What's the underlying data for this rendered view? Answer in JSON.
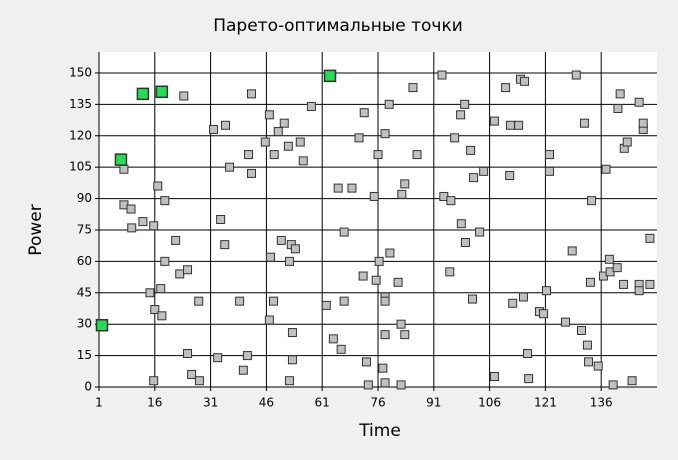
{
  "chart_data": {
    "type": "scatter",
    "title": "Парето-оптимальные точки",
    "x_label": "Time",
    "y_label": "Power",
    "xlim": [
      1,
      151
    ],
    "ylim": [
      0,
      160
    ],
    "xticks": [
      1,
      16,
      31,
      46,
      61,
      76,
      91,
      106,
      121,
      136
    ],
    "yticks": [
      0,
      15,
      30,
      45,
      60,
      75,
      90,
      105,
      120,
      135,
      150
    ],
    "grid": true,
    "series": [
      {
        "color": "#c0c0c0",
        "marker_size": 8,
        "x": [
          7.7,
          7.7,
          9.6,
          9.8,
          12.8,
          14.7,
          15.7,
          16,
          16.8,
          17.6,
          17.9,
          18.7,
          18.7,
          15.7,
          21.6,
          22.7,
          24.8,
          23.8,
          24.8,
          25.9,
          28,
          27.8,
          31.8,
          33.7,
          32.9,
          35,
          34.8,
          36.1,
          38.8,
          39.8,
          40.9,
          41.2,
          42,
          42,
          45.7,
          46.8,
          47.1,
          47.9,
          46.8,
          48.1,
          49.2,
          50,
          50.8,
          51.9,
          52.2,
          52.7,
          53.8,
          52.2,
          53,
          53,
          55.1,
          55.9,
          58.1,
          62.1,
          64,
          65.3,
          66.1,
          66.9,
          66.9,
          69,
          70.9,
          72.3,
          72,
          72.9,
          73.4,
          75,
          75.5,
          76.3,
          76,
          77.3,
          77.9,
          77.9,
          77.9,
          77.9,
          77.9,
          79,
          79.2,
          81.4,
          82.4,
          83.2,
          82.2,
          83.2,
          82.2,
          85.4,
          86.5,
          93.2,
          93.7,
          95.6,
          95.3,
          96.6,
          98.2,
          98.4,
          99.5,
          99.3,
          100.9,
          101.7,
          101.4,
          103.3,
          104.4,
          107.3,
          107.3,
          110.3,
          111.4,
          111.6,
          112.2,
          113.8,
          114.3,
          115.4,
          115.1,
          116.2,
          116.5,
          119.4,
          120.5,
          121.3,
          122.1,
          122.1,
          126.4,
          128.2,
          129.3,
          130.7,
          131.5,
          132.3,
          132.6,
          133.1,
          133.4,
          135.2,
          136.6,
          137.3,
          138.2,
          138.4,
          139.2,
          140.3,
          140.5,
          141.1,
          142.2,
          143,
          142,
          144.3,
          146.2,
          146.2,
          146.2,
          147.3,
          147.3,
          149.1,
          149.1
        ],
        "values": [
          104,
          87,
          85,
          76,
          79,
          45,
          77,
          37,
          96,
          47,
          34,
          89,
          60,
          3,
          70,
          54,
          56,
          139,
          16,
          6,
          3,
          41,
          123,
          80,
          14,
          125,
          68,
          105,
          41,
          8,
          15,
          111,
          102,
          140,
          117,
          130,
          62,
          41,
          32,
          111,
          122,
          70,
          126,
          115,
          60,
          68,
          66,
          3,
          13,
          26,
          117,
          108,
          134,
          39,
          23,
          95,
          18,
          74,
          41,
          95,
          119,
          131,
          53,
          12,
          1,
          91,
          51,
          60,
          111,
          9,
          25,
          43,
          41,
          2,
          121,
          135,
          64,
          50,
          92,
          97,
          30,
          25,
          1,
          143,
          111,
          149,
          91,
          89,
          55,
          119,
          130,
          78,
          69,
          135,
          113,
          100,
          42,
          74,
          103,
          127,
          5,
          143,
          101,
          125,
          40,
          125,
          147,
          146,
          43,
          16,
          4,
          36,
          35,
          46,
          111,
          103,
          31,
          65,
          149,
          27,
          126,
          20,
          12,
          50,
          89,
          10,
          53,
          104,
          61,
          55,
          1,
          57,
          133,
          140,
          114,
          117,
          49,
          3,
          136,
          49,
          46,
          123,
          126,
          71,
          49
        ]
      },
      {
        "color": "#22dd55",
        "marker_size": 11,
        "x": [
          1.8,
          6.9,
          12.8,
          17.9,
          63.1
        ],
        "values": [
          29.5,
          108.6,
          140,
          141,
          148.6
        ]
      }
    ]
  }
}
